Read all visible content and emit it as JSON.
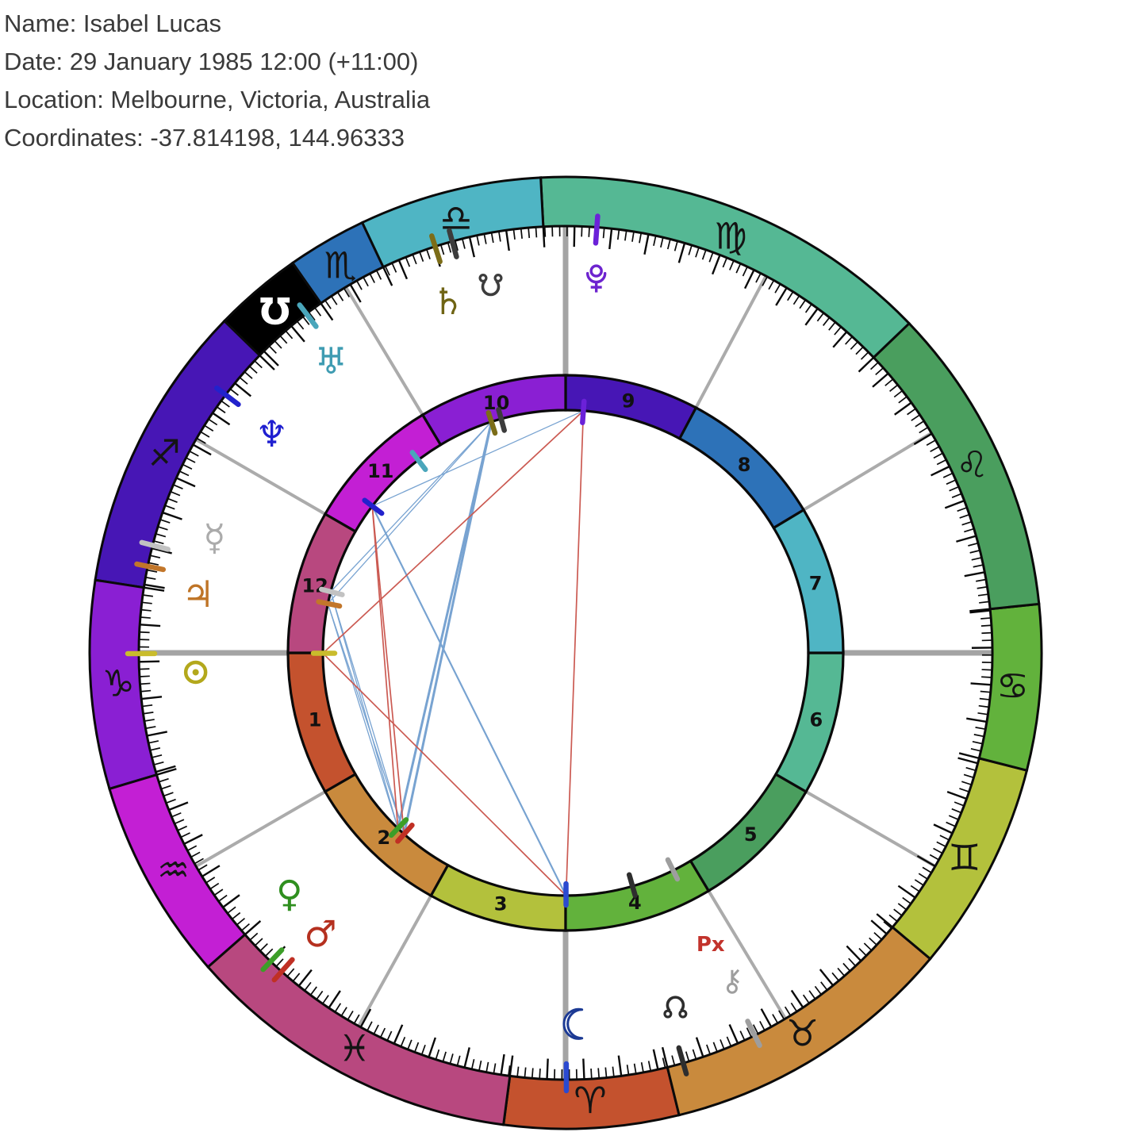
{
  "header": {
    "name": "Name: Isabel Lucas",
    "date": "Date: 29 January 1985 12:00 (+11:00)",
    "location": "Location: Melbourne, Victoria, Australia",
    "coordinates": "Coordinates: -37.814198, 144.96333"
  },
  "chart": {
    "retro_label": "Px",
    "retro_color": "#c2332c",
    "axis_color": "#a4a4a4",
    "cusp_color": "#ababab",
    "outline_color": "#0a0a0a",
    "aspect_colors": {
      "blue": "#78a3d1",
      "red": "#cb5a52"
    },
    "signs": [
      {
        "name": "Aries",
        "glyph": "♈",
        "start": 262.5,
        "end": 283.8,
        "color": "#c4522e",
        "glyph_color": "#141414"
      },
      {
        "name": "Taurus",
        "glyph": "♉",
        "start": 283.8,
        "end": 320.0,
        "color": "#c98a3d",
        "glyph_color": "#141414"
      },
      {
        "name": "Gemini",
        "glyph": "♊",
        "start": 320.0,
        "end": 345.7,
        "color": "#b3c13c",
        "glyph_color": "#141414"
      },
      {
        "name": "Cancer",
        "glyph": "♋",
        "start": 345.7,
        "end": 365.9,
        "color": "#62b23c",
        "glyph_color": "#141414"
      },
      {
        "name": "Leo",
        "glyph": "♌",
        "start": 5.9,
        "end": 43.8,
        "color": "#4a9e5e",
        "glyph_color": "#141414"
      },
      {
        "name": "Virgo",
        "glyph": "♍",
        "start": 43.8,
        "end": 93.0,
        "color": "#55b894",
        "glyph_color": "#141414"
      },
      {
        "name": "Libra",
        "glyph": "♎",
        "start": 93.0,
        "end": 115.3,
        "color": "#4fb5c4",
        "glyph_color": "#141414"
      },
      {
        "name": "Scorpio",
        "glyph": "♏",
        "start": 115.3,
        "end": 125.0,
        "color": "#2d72b8",
        "glyph_color": "#141414"
      },
      {
        "name": "Ophiuchus",
        "glyph": "℧",
        "start": 125.0,
        "end": 135.8,
        "color": "#000000",
        "glyph_color": "#ffffff"
      },
      {
        "name": "Sagittarius",
        "glyph": "♐",
        "start": 135.8,
        "end": 171.2,
        "color": "#4716b5",
        "glyph_color": "#141414"
      },
      {
        "name": "Capricorn",
        "glyph": "♑",
        "start": 171.2,
        "end": 196.6,
        "color": "#8a1fd3",
        "glyph_color": "#141414"
      },
      {
        "name": "Aquarius",
        "glyph": "♒",
        "start": 196.6,
        "end": 221.3,
        "color": "#c31fd4",
        "glyph_color": "#141414"
      },
      {
        "name": "Pisces",
        "glyph": "♓",
        "start": 221.3,
        "end": 262.5,
        "color": "#b8487f",
        "glyph_color": "#141414"
      }
    ],
    "houses": [
      {
        "num": "1",
        "cusp": 180,
        "end": 210,
        "color": "#c4522e",
        "axis": true
      },
      {
        "num": "2",
        "cusp": 210,
        "end": 241,
        "color": "#c98a3d",
        "axis": false
      },
      {
        "num": "3",
        "cusp": 241,
        "end": 270,
        "color": "#b3c13c",
        "axis": false
      },
      {
        "num": "4",
        "cusp": 270,
        "end": 301,
        "color": "#62b23c",
        "axis": true
      },
      {
        "num": "5",
        "cusp": 301,
        "end": 330,
        "color": "#4a9e5e",
        "axis": false
      },
      {
        "num": "6",
        "cusp": 330,
        "end": 360,
        "color": "#55b894",
        "axis": false
      },
      {
        "num": "7",
        "cusp": 0,
        "end": 31,
        "color": "#4fb5c4",
        "axis": true
      },
      {
        "num": "8",
        "cusp": 31,
        "end": 62,
        "color": "#2d72b8",
        "axis": false
      },
      {
        "num": "9",
        "cusp": 62,
        "end": 90,
        "color": "#4716b5",
        "axis": false
      },
      {
        "num": "10",
        "cusp": 90,
        "end": 121,
        "color": "#8a1fd3",
        "axis": true
      },
      {
        "num": "11",
        "cusp": 121,
        "end": 150,
        "color": "#c31fd4",
        "axis": false
      },
      {
        "num": "12",
        "cusp": 150,
        "end": 180,
        "color": "#b8487f",
        "axis": false
      }
    ],
    "planets": [
      {
        "name": "sun",
        "symbol": "svg",
        "angle": 180.1,
        "glyph_angle": 183.0,
        "glyph_r": 467,
        "color": "#c9bc2c",
        "glyph_color": "#b3a81c"
      },
      {
        "name": "moon",
        "symbol": "svg",
        "angle": 270.1,
        "glyph_angle": 271.8,
        "glyph_r": 468,
        "color": "#2b4ad0",
        "glyph_color": "#1c3a94"
      },
      {
        "name": "mercury",
        "symbol": "☿",
        "angle": 165.4,
        "glyph_angle": 161.8,
        "glyph_r": 466,
        "color": "#c2c2c2",
        "glyph_color": "#ababab"
      },
      {
        "name": "venus",
        "symbol": "♀",
        "angle": 226.3,
        "glyph_angle": 221.1,
        "glyph_r": 462,
        "color": "#3c9e28",
        "glyph_color": "#2f8f1f"
      },
      {
        "name": "mars",
        "symbol": "♂",
        "angle": 228.3,
        "glyph_angle": 228.9,
        "glyph_r": 470,
        "color": "#c03024",
        "glyph_color": "#b5301f"
      },
      {
        "name": "jupiter",
        "symbol": "♃",
        "angle": 168.3,
        "glyph_angle": 170.9,
        "glyph_r": 469,
        "color": "#c2762a",
        "glyph_color": "#bf7426"
      },
      {
        "name": "saturn",
        "symbol": "♄",
        "angle": 107.8,
        "glyph_angle": 108.5,
        "glyph_r": 467,
        "color": "#7c6d18",
        "glyph_color": "#6f6414"
      },
      {
        "name": "uranus",
        "symbol": "♅",
        "angle": 127.4,
        "glyph_angle": 128.8,
        "glyph_r": 472,
        "color": "#4aa6bb",
        "glyph_color": "#3f9cb2"
      },
      {
        "name": "neptune",
        "symbol": "♆",
        "angle": 142.8,
        "glyph_angle": 143.3,
        "glyph_r": 462,
        "color": "#2222cc",
        "glyph_color": "#1f1fd0"
      },
      {
        "name": "pluto",
        "symbol": "svg",
        "angle": 85.8,
        "glyph_angle": 85.3,
        "glyph_r": 472,
        "color": "#6b21d8",
        "glyph_color": "#6d23cf"
      },
      {
        "name": "north-node",
        "symbol": "svg",
        "angle": 286.0,
        "glyph_angle": 287.2,
        "glyph_r": 468,
        "color": "#2e2e2e",
        "glyph_color": "#2e2e2e"
      },
      {
        "name": "south-node",
        "symbol": "svg",
        "angle": 105.4,
        "glyph_angle": 101.5,
        "glyph_r": 474,
        "color": "#3c3c3c",
        "glyph_color": "#3c3c3c"
      },
      {
        "name": "chiron",
        "symbol": "svg",
        "angle": 296.3,
        "glyph_angle": 296.9,
        "glyph_r": 464,
        "color": "#9e9e9e",
        "glyph_color": "#9e9e9e",
        "retrograde": true
      }
    ],
    "aspects": [
      {
        "p1": "venus",
        "p2": "saturn",
        "type": "trine",
        "color": "blue",
        "width": 3
      },
      {
        "p1": "mars",
        "p2": "saturn",
        "type": "trine",
        "color": "blue",
        "width": 3
      },
      {
        "p1": "moon",
        "p2": "neptune",
        "type": "trine",
        "color": "blue",
        "width": 2.2
      },
      {
        "p1": "venus",
        "p2": "mercury",
        "type": "sextile",
        "color": "blue",
        "width": 1.3
      },
      {
        "p1": "venus",
        "p2": "jupiter",
        "type": "sextile",
        "color": "blue",
        "width": 1.3
      },
      {
        "p1": "mars",
        "p2": "mercury",
        "type": "sextile",
        "color": "blue",
        "width": 1.3
      },
      {
        "p1": "mars",
        "p2": "jupiter",
        "type": "sextile",
        "color": "blue",
        "width": 1.3
      },
      {
        "p1": "saturn",
        "p2": "mercury",
        "type": "sextile",
        "color": "blue",
        "width": 1.3
      },
      {
        "p1": "saturn",
        "p2": "jupiter",
        "type": "sextile",
        "color": "blue",
        "width": 1.3
      },
      {
        "p1": "pluto",
        "p2": "neptune",
        "type": "sextile",
        "color": "blue",
        "width": 1.3
      },
      {
        "p1": "sun",
        "p2": "moon",
        "type": "square",
        "color": "red",
        "width": 1.7
      },
      {
        "p1": "sun",
        "p2": "pluto",
        "type": "square",
        "color": "red",
        "width": 1.7
      },
      {
        "p1": "venus",
        "p2": "neptune",
        "type": "square",
        "color": "red",
        "width": 1.7
      },
      {
        "p1": "mars",
        "p2": "neptune",
        "type": "square",
        "color": "red",
        "width": 1.7
      },
      {
        "p1": "moon",
        "p2": "pluto",
        "type": "opposition",
        "color": "red",
        "width": 1.7
      }
    ]
  }
}
